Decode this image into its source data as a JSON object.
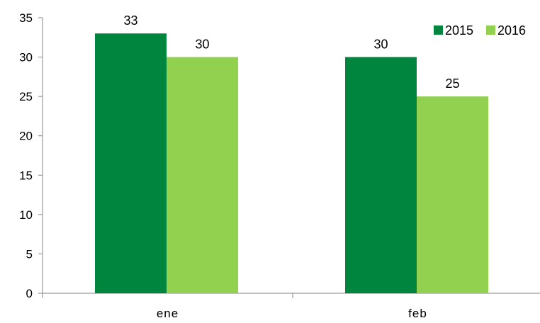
{
  "chart_data": {
    "type": "bar",
    "categories": [
      "ene",
      "feb"
    ],
    "series": [
      {
        "name": "2015",
        "values": [
          33,
          30
        ],
        "color": "#00853F"
      },
      {
        "name": "2016",
        "values": [
          30,
          25
        ],
        "color": "#92D050"
      }
    ],
    "ylim": [
      0,
      35
    ],
    "yticks": [
      0,
      5,
      10,
      15,
      20,
      25,
      30,
      35
    ],
    "grid": false,
    "legend_position": "top-right",
    "data_labels": true,
    "axis_color": "#868686"
  }
}
